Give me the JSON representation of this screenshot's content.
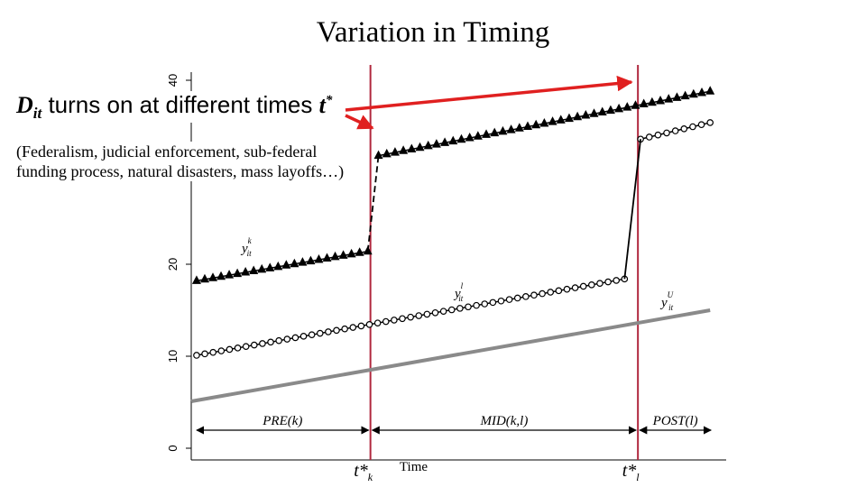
{
  "title": "Variation in Timing",
  "headline": {
    "d": "D",
    "d_sub": "it",
    "text": " turns on at different times ",
    "t": "t",
    "t_sup": "*"
  },
  "subtext": "(Federalism, judicial enforcement, sub-federal funding process, natural disasters, mass layoffs…)",
  "colors": {
    "event_line": "#b0283e",
    "arrow": "#e02020",
    "untreated": "#8a8a8a",
    "series": "#000000"
  },
  "chart_data": {
    "type": "line",
    "xlabel": "Time",
    "ylim": [
      0,
      40
    ],
    "xlim": [
      0,
      100
    ],
    "yticks": [
      "0",
      "10",
      "20",
      "40"
    ],
    "ytick_values": [
      0,
      10,
      20,
      40
    ],
    "grid": false,
    "events": [
      {
        "label": "t*",
        "sub": "k",
        "x": 33.5
      },
      {
        "label": "t*",
        "sub": "l",
        "x": 83.5
      }
    ],
    "periods": [
      {
        "label": "PRE(k)",
        "from": 0,
        "to": 33.5
      },
      {
        "label": "MID(k,l)",
        "from": 33.5,
        "to": 83.5
      },
      {
        "label": "POST(l)",
        "from": 83.5,
        "to": 97.5
      }
    ],
    "series": [
      {
        "name": "y",
        "sup": "k",
        "sub": "it",
        "marker": "triangle",
        "segments": [
          {
            "x": [
              1,
              33
            ],
            "y": [
              18.2,
              21.4
            ]
          },
          {
            "x": [
              35,
              97
            ],
            "y": [
              31.8,
              38.8
            ]
          }
        ],
        "jump": {
          "x": [
            33,
            35
          ],
          "y": [
            21.4,
            31.8
          ],
          "style": "dashed"
        }
      },
      {
        "name": "y",
        "sup": "l",
        "sub": "it",
        "marker": "circle",
        "segments": [
          {
            "x": [
              1,
              81
            ],
            "y": [
              10.1,
              18.4
            ]
          },
          {
            "x": [
              84,
              97
            ],
            "y": [
              33.6,
              35.4
            ]
          }
        ],
        "jump": {
          "x": [
            81,
            84
          ],
          "y": [
            18.4,
            33.6
          ],
          "style": "solid"
        }
      },
      {
        "name": "y",
        "sup": "U",
        "sub": "it",
        "marker": "none",
        "segments": [
          {
            "x": [
              0,
              97
            ],
            "y": [
              5.1,
              15.0
            ]
          }
        ]
      }
    ]
  }
}
